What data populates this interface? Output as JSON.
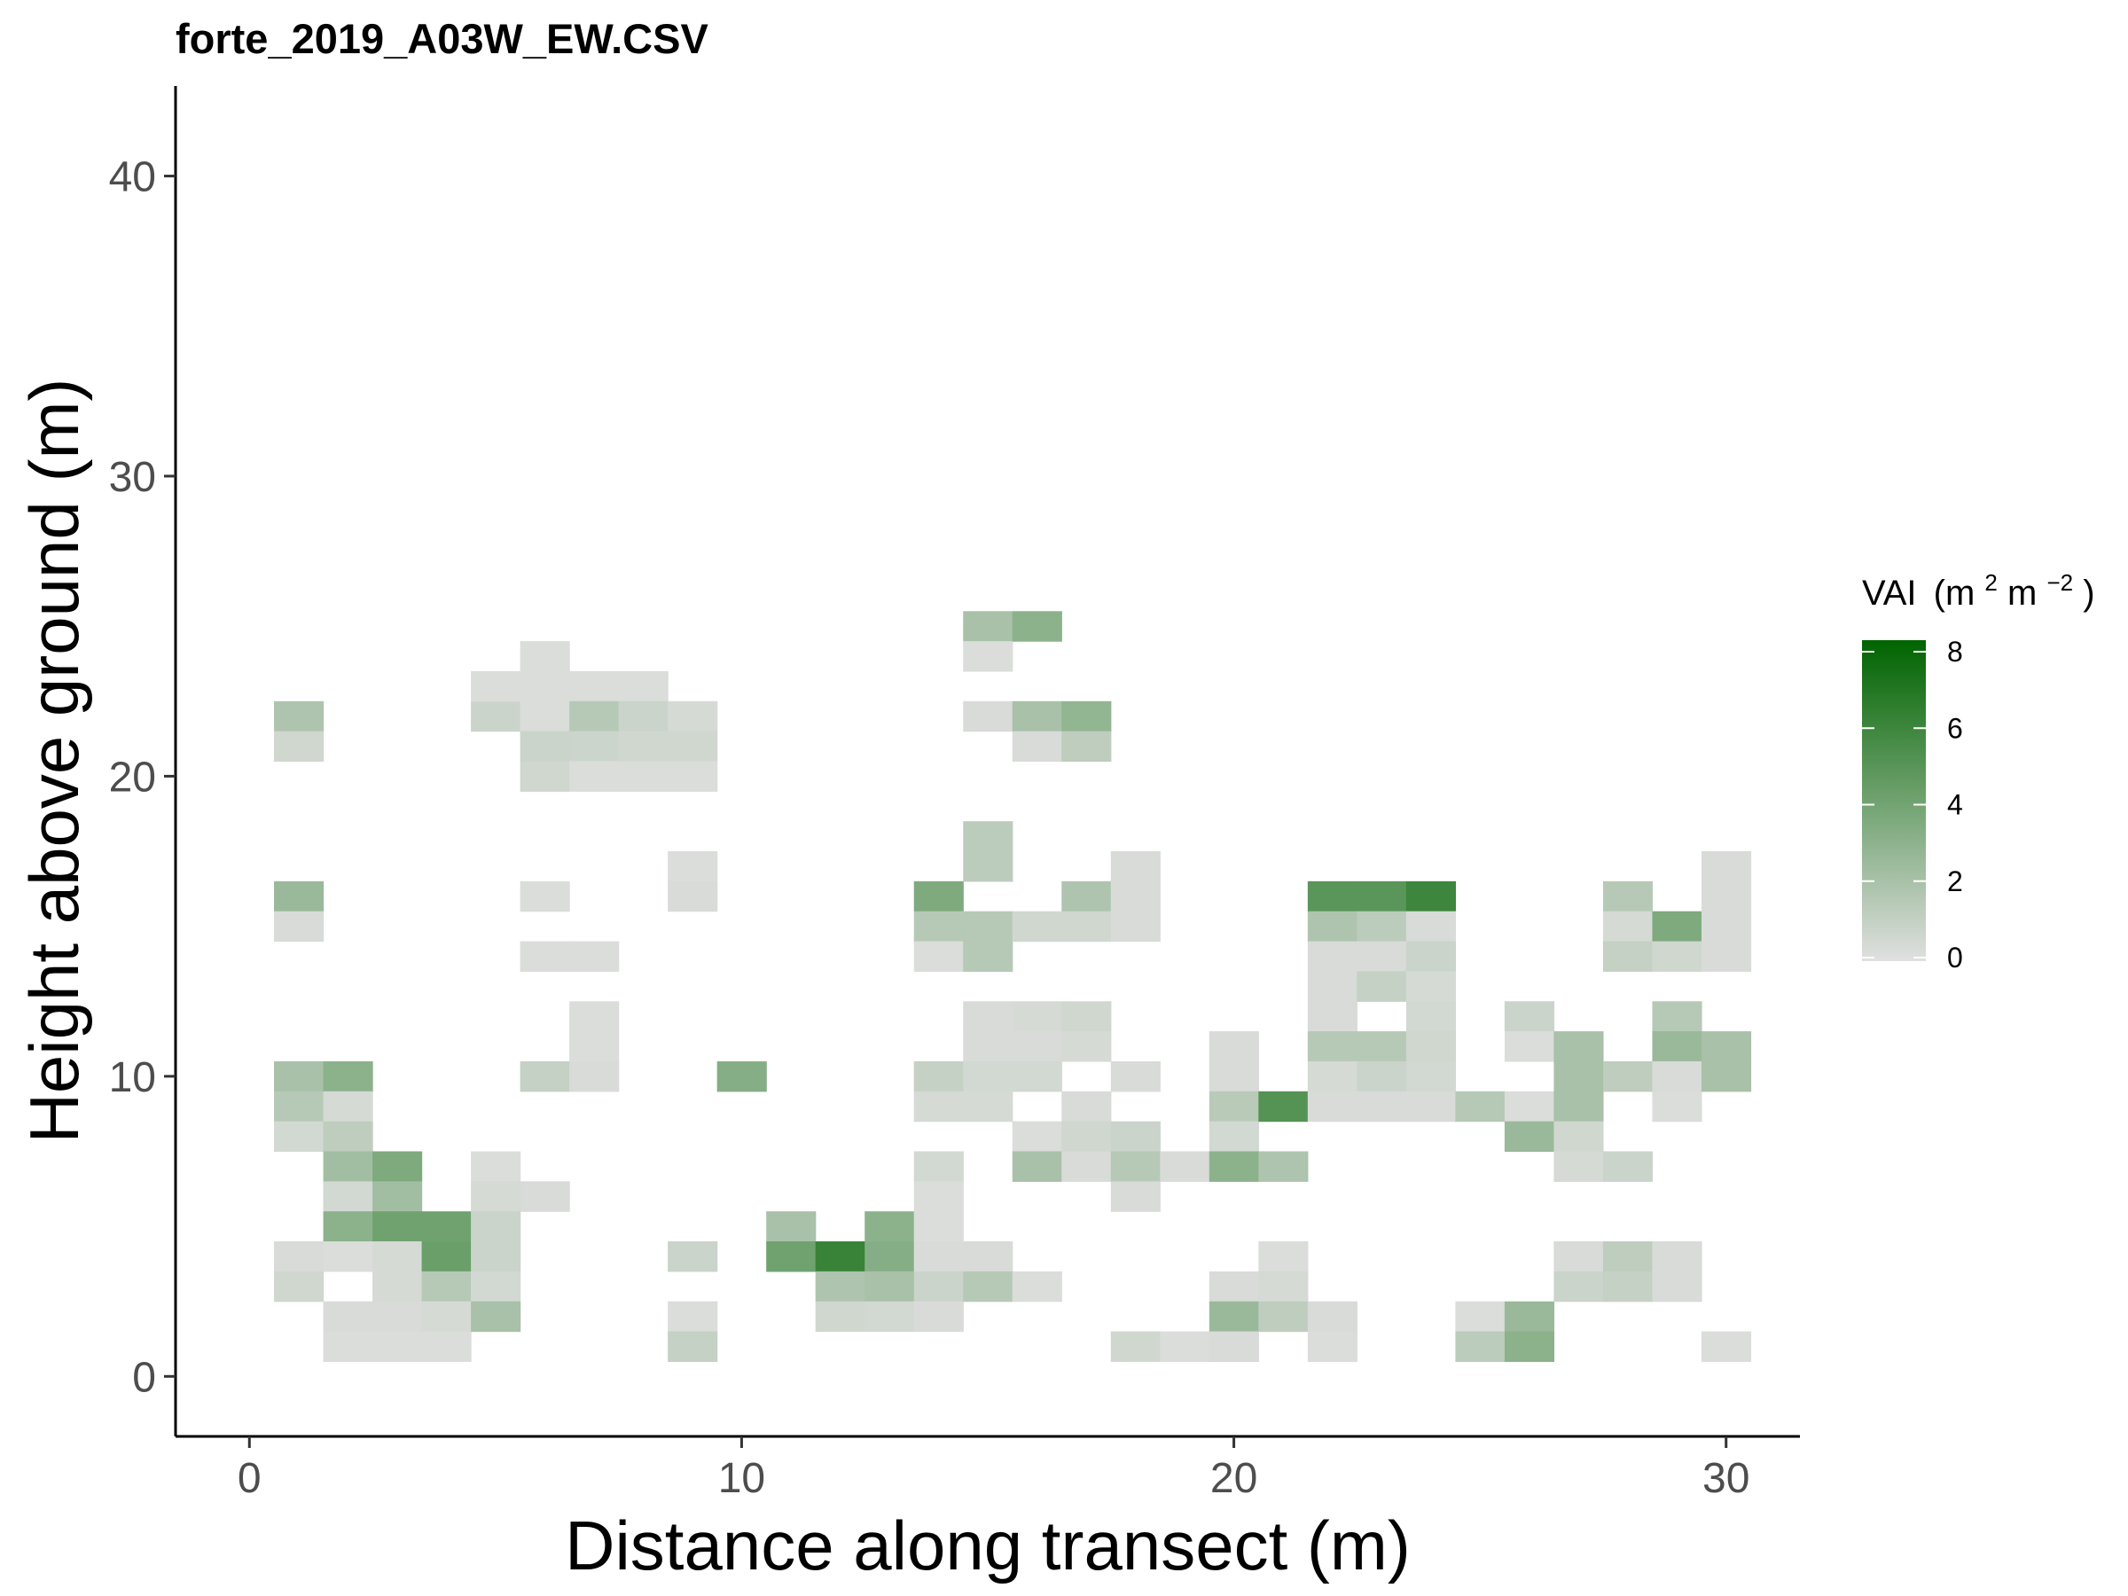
{
  "chart_data": {
    "type": "heatmap",
    "title": "forte_2019_A03W_EW.CSV",
    "xlabel": "Distance along transect (m)",
    "ylabel": "Height above ground (m)",
    "xlim": [
      -1.5,
      31.5
    ],
    "ylim": [
      -2,
      43
    ],
    "x_ticks": [
      0,
      10,
      20,
      30
    ],
    "y_ticks": [
      0,
      10,
      20,
      30,
      40
    ],
    "grid": false,
    "legend": {
      "title": "VAI",
      "title_unit_parts": [
        "(m",
        "2",
        " m",
        "−2",
        ")"
      ],
      "ticks": [
        0,
        2,
        4,
        6,
        8
      ],
      "range": [
        0,
        8
      ],
      "placement": "right",
      "color_low": "#e0e0e0",
      "color_high": "#006400"
    },
    "cell_width": 1,
    "cell_height": 1,
    "cells": [
      [
        1,
        22,
        1.8
      ],
      [
        1,
        21,
        0.6
      ],
      [
        1,
        16,
        2.5
      ],
      [
        1,
        15,
        0.3
      ],
      [
        1,
        10,
        2.0
      ],
      [
        1,
        9,
        1.5
      ],
      [
        1,
        8,
        0.5
      ],
      [
        1,
        4,
        0.3
      ],
      [
        1,
        3,
        0.6
      ],
      [
        2,
        10,
        3.0
      ],
      [
        2,
        9,
        0.4
      ],
      [
        2,
        8,
        1.2
      ],
      [
        2,
        7,
        2.2
      ],
      [
        2,
        6,
        0.5
      ],
      [
        2,
        5,
        3.0
      ],
      [
        2,
        4,
        0.2
      ],
      [
        2,
        2,
        0.3
      ],
      [
        2,
        1,
        0.2
      ],
      [
        3,
        7,
        3.5
      ],
      [
        3,
        6,
        2.2
      ],
      [
        3,
        5,
        4.0
      ],
      [
        3,
        4,
        0.4
      ],
      [
        3,
        3,
        0.4
      ],
      [
        3,
        2,
        0.3
      ],
      [
        3,
        1,
        0.2
      ],
      [
        4,
        5,
        4.0
      ],
      [
        4,
        4,
        4.2
      ],
      [
        4,
        3,
        1.5
      ],
      [
        4,
        2,
        0.4
      ],
      [
        4,
        1,
        0.2
      ],
      [
        5,
        22,
        0.8
      ],
      [
        5,
        23,
        0.2
      ],
      [
        5,
        7,
        0.2
      ],
      [
        5,
        6,
        0.4
      ],
      [
        5,
        5,
        0.8
      ],
      [
        5,
        4,
        0.8
      ],
      [
        5,
        3,
        0.5
      ],
      [
        5,
        2,
        2.0
      ],
      [
        6,
        24,
        0.2
      ],
      [
        6,
        23,
        0.2
      ],
      [
        6,
        22,
        0.2
      ],
      [
        6,
        21,
        0.8
      ],
      [
        6,
        20,
        0.6
      ],
      [
        6,
        16,
        0.2
      ],
      [
        6,
        14,
        0.2
      ],
      [
        6,
        10,
        1.0
      ],
      [
        6,
        6,
        0.3
      ],
      [
        7,
        23,
        0.2
      ],
      [
        7,
        22,
        1.5
      ],
      [
        7,
        21,
        0.7
      ],
      [
        7,
        20,
        0.2
      ],
      [
        7,
        14,
        0.2
      ],
      [
        7,
        12,
        0.2
      ],
      [
        7,
        11,
        0.2
      ],
      [
        7,
        10,
        0.3
      ],
      [
        8,
        23,
        0.2
      ],
      [
        8,
        22,
        0.8
      ],
      [
        8,
        21,
        0.6
      ],
      [
        8,
        20,
        0.2
      ],
      [
        9,
        22,
        0.4
      ],
      [
        9,
        21,
        0.6
      ],
      [
        9,
        20,
        0.2
      ],
      [
        9,
        17,
        0.2
      ],
      [
        9,
        16,
        0.3
      ],
      [
        9,
        4,
        0.8
      ],
      [
        9,
        2,
        0.2
      ],
      [
        9,
        1,
        1.0
      ],
      [
        10,
        10,
        3.2
      ],
      [
        11,
        5,
        2.0
      ],
      [
        11,
        4,
        4.0
      ],
      [
        12,
        4,
        6.0
      ],
      [
        12,
        3,
        1.8
      ],
      [
        12,
        2,
        0.6
      ],
      [
        13,
        5,
        3.0
      ],
      [
        13,
        4,
        3.2
      ],
      [
        13,
        3,
        2.0
      ],
      [
        13,
        2,
        0.5
      ],
      [
        14,
        16,
        3.5
      ],
      [
        14,
        15,
        1.5
      ],
      [
        14,
        14,
        0.2
      ],
      [
        14,
        10,
        1.0
      ],
      [
        14,
        9,
        0.4
      ],
      [
        14,
        7,
        0.5
      ],
      [
        14,
        6,
        0.2
      ],
      [
        14,
        5,
        0.2
      ],
      [
        14,
        4,
        0.3
      ],
      [
        14,
        3,
        0.8
      ],
      [
        14,
        2,
        0.3
      ],
      [
        15,
        25,
        2.0
      ],
      [
        15,
        24,
        0.2
      ],
      [
        15,
        22,
        0.3
      ],
      [
        15,
        18,
        1.3
      ],
      [
        15,
        17,
        1.3
      ],
      [
        15,
        15,
        1.5
      ],
      [
        15,
        14,
        1.5
      ],
      [
        15,
        12,
        0.3
      ],
      [
        15,
        11,
        0.3
      ],
      [
        15,
        10,
        0.5
      ],
      [
        15,
        9,
        0.4
      ],
      [
        15,
        4,
        0.3
      ],
      [
        15,
        3,
        1.5
      ],
      [
        16,
        25,
        3.0
      ],
      [
        16,
        22,
        2.0
      ],
      [
        16,
        21,
        0.3
      ],
      [
        16,
        15,
        0.6
      ],
      [
        16,
        12,
        0.4
      ],
      [
        16,
        11,
        0.3
      ],
      [
        16,
        10,
        0.5
      ],
      [
        16,
        8,
        0.2
      ],
      [
        16,
        7,
        2.0
      ],
      [
        16,
        3,
        0.2
      ],
      [
        17,
        22,
        2.8
      ],
      [
        17,
        21,
        1.2
      ],
      [
        17,
        16,
        1.8
      ],
      [
        17,
        15,
        0.6
      ],
      [
        17,
        12,
        0.6
      ],
      [
        17,
        11,
        0.4
      ],
      [
        17,
        9,
        0.3
      ],
      [
        17,
        8,
        0.6
      ],
      [
        17,
        7,
        0.3
      ],
      [
        18,
        17,
        0.3
      ],
      [
        18,
        16,
        0.3
      ],
      [
        18,
        15,
        0.3
      ],
      [
        18,
        10,
        0.3
      ],
      [
        18,
        8,
        0.8
      ],
      [
        18,
        7,
        1.5
      ],
      [
        18,
        6,
        0.3
      ],
      [
        18,
        1,
        0.6
      ],
      [
        19,
        7,
        0.3
      ],
      [
        19,
        1,
        0.2
      ],
      [
        20,
        11,
        0.3
      ],
      [
        20,
        10,
        0.3
      ],
      [
        20,
        9,
        1.4
      ],
      [
        20,
        8,
        0.5
      ],
      [
        20,
        7,
        3.0
      ],
      [
        20,
        3,
        0.3
      ],
      [
        20,
        2,
        2.5
      ],
      [
        20,
        1,
        0.3
      ],
      [
        21,
        9,
        5.0
      ],
      [
        21,
        7,
        1.8
      ],
      [
        21,
        4,
        0.2
      ],
      [
        21,
        3,
        0.4
      ],
      [
        21,
        2,
        1.2
      ],
      [
        22,
        16,
        4.8
      ],
      [
        22,
        15,
        1.8
      ],
      [
        22,
        14,
        0.3
      ],
      [
        22,
        13,
        0.3
      ],
      [
        22,
        12,
        0.3
      ],
      [
        22,
        11,
        1.5
      ],
      [
        22,
        10,
        0.4
      ],
      [
        22,
        9,
        0.3
      ],
      [
        22,
        2,
        0.3
      ],
      [
        22,
        1,
        0.2
      ],
      [
        23,
        16,
        4.8
      ],
      [
        23,
        15,
        1.3
      ],
      [
        23,
        14,
        0.3
      ],
      [
        23,
        13,
        1.0
      ],
      [
        23,
        11,
        1.5
      ],
      [
        23,
        10,
        0.8
      ],
      [
        23,
        9,
        0.3
      ],
      [
        24,
        16,
        5.8
      ],
      [
        24,
        15,
        0.3
      ],
      [
        24,
        14,
        0.8
      ],
      [
        24,
        13,
        0.4
      ],
      [
        24,
        12,
        0.5
      ],
      [
        24,
        11,
        0.6
      ],
      [
        24,
        10,
        0.5
      ],
      [
        24,
        9,
        0.3
      ],
      [
        25,
        9,
        1.5
      ],
      [
        25,
        2,
        0.2
      ],
      [
        25,
        1,
        1.3
      ],
      [
        26,
        12,
        0.8
      ],
      [
        26,
        11,
        0.2
      ],
      [
        26,
        9,
        0.2
      ],
      [
        26,
        8,
        2.5
      ],
      [
        26,
        2,
        2.5
      ],
      [
        26,
        1,
        3.0
      ],
      [
        27,
        11,
        2.0
      ],
      [
        27,
        10,
        2.0
      ],
      [
        27,
        9,
        2.0
      ],
      [
        27,
        8,
        0.6
      ],
      [
        27,
        7,
        0.4
      ],
      [
        27,
        4,
        0.3
      ],
      [
        27,
        3,
        0.8
      ],
      [
        28,
        16,
        1.5
      ],
      [
        28,
        15,
        0.4
      ],
      [
        28,
        14,
        1.0
      ],
      [
        28,
        10,
        1.2
      ],
      [
        28,
        7,
        0.8
      ],
      [
        28,
        4,
        1.2
      ],
      [
        28,
        3,
        1.0
      ],
      [
        29,
        15,
        3.5
      ],
      [
        29,
        14,
        0.6
      ],
      [
        29,
        12,
        1.5
      ],
      [
        29,
        11,
        2.5
      ],
      [
        29,
        10,
        0.3
      ],
      [
        29,
        9,
        0.2
      ],
      [
        29,
        4,
        0.3
      ],
      [
        29,
        3,
        0.3
      ],
      [
        30,
        17,
        0.3
      ],
      [
        30,
        16,
        0.3
      ],
      [
        30,
        15,
        0.3
      ],
      [
        30,
        14,
        0.3
      ],
      [
        30,
        11,
        2.0
      ],
      [
        30,
        10,
        2.0
      ],
      [
        30,
        1,
        0.2
      ]
    ]
  }
}
